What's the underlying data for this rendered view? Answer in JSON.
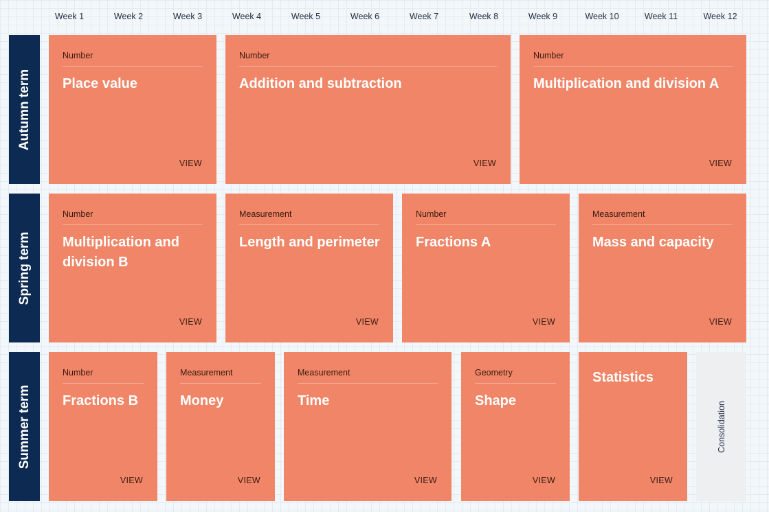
{
  "weeks": [
    "Week 1",
    "Week 2",
    "Week 3",
    "Week 4",
    "Week 5",
    "Week 6",
    "Week 7",
    "Week 8",
    "Week 9",
    "Week 10",
    "Week 11",
    "Week 12"
  ],
  "terms": [
    "Autumn term",
    "Spring term",
    "Summer term"
  ],
  "autumn": [
    {
      "category": "Number",
      "title": "Place value",
      "view": "VIEW"
    },
    {
      "category": "Number",
      "title": "Addition and subtraction",
      "view": "VIEW"
    },
    {
      "category": "Number",
      "title": "Multiplication and division A",
      "view": "VIEW"
    }
  ],
  "spring": [
    {
      "category": "Number",
      "title": "Multiplication and division B",
      "view": "VIEW"
    },
    {
      "category": "Measurement",
      "title": "Length and perimeter",
      "view": "VIEW"
    },
    {
      "category": "Number",
      "title": "Fractions A",
      "view": "VIEW"
    },
    {
      "category": "Measurement",
      "title": "Mass and capacity",
      "view": "VIEW"
    }
  ],
  "summer": [
    {
      "category": "Number",
      "title": "Fractions B",
      "view": "VIEW"
    },
    {
      "category": "Measurement",
      "title": "Money",
      "view": "VIEW"
    },
    {
      "category": "Measurement",
      "title": "Time",
      "view": "VIEW"
    },
    {
      "category": "Geometry",
      "title": "Shape",
      "view": "VIEW"
    },
    {
      "title": "Statistics",
      "view": "VIEW"
    }
  ],
  "consolidation": "Consolidation",
  "colors": {
    "card": "#f08567",
    "term": "#0c2a52",
    "consolidation": "#eeeff1"
  }
}
